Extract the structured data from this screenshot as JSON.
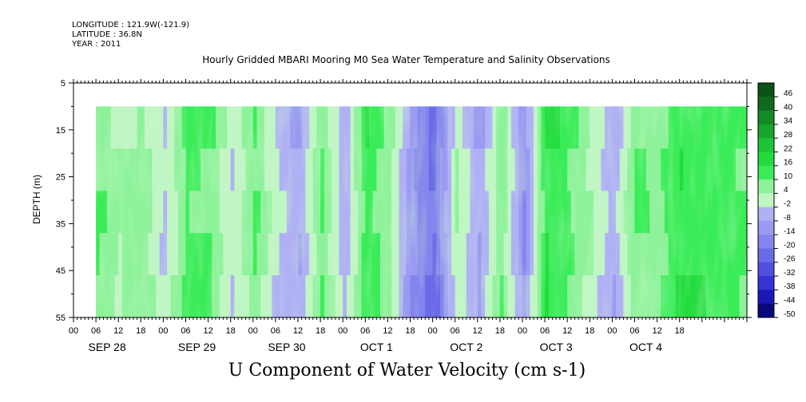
{
  "header": {
    "longitude": "LONGITUDE : 121.9W(-121.9)",
    "latitude": "LATITUDE : 36.8N",
    "year": "YEAR : 2011"
  },
  "chart_data": {
    "type": "heatmap",
    "title": "Hourly Gridded MBARI Mooring M0 Sea Water Temperature and Salinity Observations",
    "xlabel": "U Component of Water Velocity (cm s-1)",
    "ylabel": "DEPTH (m)",
    "y_ticks": [
      5,
      15,
      25,
      35,
      45,
      55
    ],
    "ylim": [
      5,
      55
    ],
    "y_inverted": true,
    "hour_ticks": [
      "00",
      "06",
      "12",
      "18",
      "00",
      "06",
      "12",
      "18",
      "00",
      "06",
      "12",
      "18",
      "00",
      "06",
      "12",
      "18",
      "00",
      "06",
      "12",
      "18",
      "00",
      "06",
      "12",
      "18",
      "00",
      "06",
      "12",
      "18"
    ],
    "date_labels": [
      "SEP 28",
      "SEP 29",
      "SEP 30",
      "OCT  1",
      "OCT  2",
      "OCT  3",
      "OCT  4"
    ],
    "colorbar_levels": [
      46,
      40,
      34,
      28,
      22,
      16,
      10,
      4,
      -2,
      -8,
      -14,
      -20,
      -26,
      -32,
      -38,
      -44,
      -50
    ],
    "colorbar_colors": [
      "#0a5216",
      "#0f6a1e",
      "#138a26",
      "#18a52d",
      "#1cc536",
      "#22dc3e",
      "#3aec58",
      "#8ef29a",
      "#c0f5c4",
      "#b0b0f5",
      "#9a9af2",
      "#8484ee",
      "#6b6be8",
      "#5050e0",
      "#3434d4",
      "#1818b8",
      "#08087c"
    ],
    "data_start_hour": 6,
    "data_depth_top": 10,
    "data_depth_bottom": 55,
    "u_velocity_by_time": [
      {
        "t": 6,
        "v": 12
      },
      {
        "t": 12,
        "v": 6
      },
      {
        "t": 18,
        "v": 8
      },
      {
        "t": 24,
        "v": -4
      },
      {
        "t": 30,
        "v": 10
      },
      {
        "t": 36,
        "v": 8
      },
      {
        "t": 42,
        "v": -2
      },
      {
        "t": 48,
        "v": 12
      },
      {
        "t": 54,
        "v": 0
      },
      {
        "t": 60,
        "v": -6
      },
      {
        "t": 66,
        "v": 10
      },
      {
        "t": 72,
        "v": -8
      },
      {
        "t": 78,
        "v": 12
      },
      {
        "t": 84,
        "v": 4
      },
      {
        "t": 90,
        "v": -12
      },
      {
        "t": 96,
        "v": -20
      },
      {
        "t": 102,
        "v": 6
      },
      {
        "t": 108,
        "v": -8
      },
      {
        "t": 114,
        "v": 8
      },
      {
        "t": 120,
        "v": -16
      },
      {
        "t": 126,
        "v": 14
      },
      {
        "t": 132,
        "v": 10
      },
      {
        "t": 138,
        "v": 4
      },
      {
        "t": 144,
        "v": -4
      },
      {
        "t": 150,
        "v": 12
      },
      {
        "t": 156,
        "v": 8
      },
      {
        "t": 162,
        "v": 14
      },
      {
        "t": 168,
        "v": 12
      },
      {
        "t": 174,
        "v": 10
      }
    ]
  }
}
